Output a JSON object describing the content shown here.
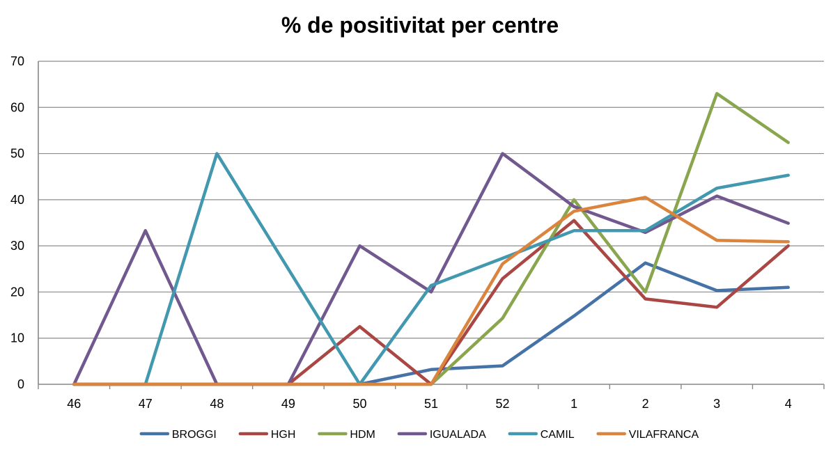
{
  "chart_data": {
    "type": "line",
    "title": "% de positivitat per centre",
    "xlabel": "",
    "ylabel": "",
    "categories": [
      "46",
      "47",
      "48",
      "49",
      "50",
      "51",
      "52",
      "1",
      "2",
      "3",
      "4"
    ],
    "ylim": [
      0,
      70
    ],
    "yticks": [
      0,
      10,
      20,
      30,
      40,
      50,
      60,
      70
    ],
    "grid": true,
    "legend_position": "bottom",
    "series": [
      {
        "name": "BROGGI",
        "color": "#4572a7",
        "values": [
          0,
          0,
          0,
          0,
          0,
          3.2,
          4,
          14.8,
          26.3,
          20.3,
          21
        ]
      },
      {
        "name": "HGH",
        "color": "#aa4643",
        "values": [
          0,
          0,
          0,
          0,
          12.5,
          0,
          22.9,
          35.5,
          18.5,
          16.7,
          30
        ]
      },
      {
        "name": "HDM",
        "color": "#89a54e",
        "values": [
          0,
          0,
          0,
          0,
          0,
          0,
          14.3,
          40,
          20,
          63,
          52.4
        ]
      },
      {
        "name": "IGUALADA",
        "color": "#71588f",
        "values": [
          0,
          33.3,
          0,
          0,
          30,
          20,
          50,
          38.5,
          32.9,
          40.8,
          34.9
        ]
      },
      {
        "name": "CAMIL",
        "color": "#4198af",
        "values": [
          0,
          0,
          50,
          25,
          0,
          21.4,
          27.3,
          33.3,
          33.3,
          42.5,
          45.3
        ]
      },
      {
        "name": "VILAFRANCA",
        "color": "#db843d",
        "values": [
          0,
          0,
          0,
          0,
          0,
          0,
          26.1,
          37.5,
          40.5,
          31.2,
          30.9
        ]
      }
    ]
  }
}
